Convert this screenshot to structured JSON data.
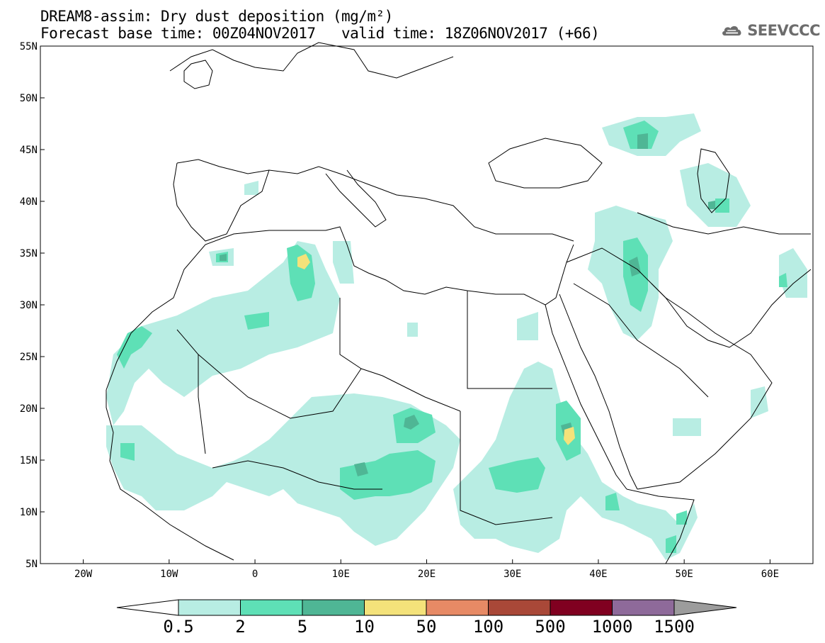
{
  "title": {
    "line1": "DREAM8-assim: Dry dust deposition (mg/m²)",
    "base_time": "Forecast base time: 00Z04NOV2017",
    "valid_time": "valid time: 18Z06NOV2017 (+66)"
  },
  "logo": {
    "text": "SEEVCCC",
    "icon": "cloud-icon"
  },
  "map": {
    "extent": {
      "lon": [
        -25,
        65
      ],
      "lat": [
        5,
        55
      ]
    },
    "lat_labels": [
      {
        "value": 55,
        "text": "55N"
      },
      {
        "value": 50,
        "text": "50N"
      },
      {
        "value": 45,
        "text": "45N"
      },
      {
        "value": 40,
        "text": "40N"
      },
      {
        "value": 35,
        "text": "35N"
      },
      {
        "value": 30,
        "text": "30N"
      },
      {
        "value": 25,
        "text": "25N"
      },
      {
        "value": 20,
        "text": "20N"
      },
      {
        "value": 15,
        "text": "15N"
      },
      {
        "value": 10,
        "text": "10N"
      },
      {
        "value": 5,
        "text": "5N"
      }
    ],
    "lon_labels": [
      {
        "value": -20,
        "text": "20W"
      },
      {
        "value": -10,
        "text": "10W"
      },
      {
        "value": 0,
        "text": "0"
      },
      {
        "value": 10,
        "text": "10E"
      },
      {
        "value": 20,
        "text": "20E"
      },
      {
        "value": 30,
        "text": "30E"
      },
      {
        "value": 40,
        "text": "40E"
      },
      {
        "value": 50,
        "text": "50E"
      },
      {
        "value": 60,
        "text": "60E"
      }
    ],
    "colors": {
      "land_outline": "#000000",
      "ocean": "#ffffff",
      "dep_0_5": "#b8ede3",
      "dep_2": "#5ee0b6",
      "dep_5": "#4fb695",
      "dep_10": "#f4e27a"
    }
  },
  "colorbar": {
    "ticks": [
      "0.5",
      "2",
      "5",
      "10",
      "50",
      "100",
      "500",
      "1000",
      "1500"
    ],
    "colors": [
      "#b8ede3",
      "#5ee0b6",
      "#4fb695",
      "#f4e27a",
      "#e78a65",
      "#a94838",
      "#800020",
      "#8e6a9a"
    ],
    "under_color": "#ffffff",
    "over_color": "#9c9c9c"
  }
}
